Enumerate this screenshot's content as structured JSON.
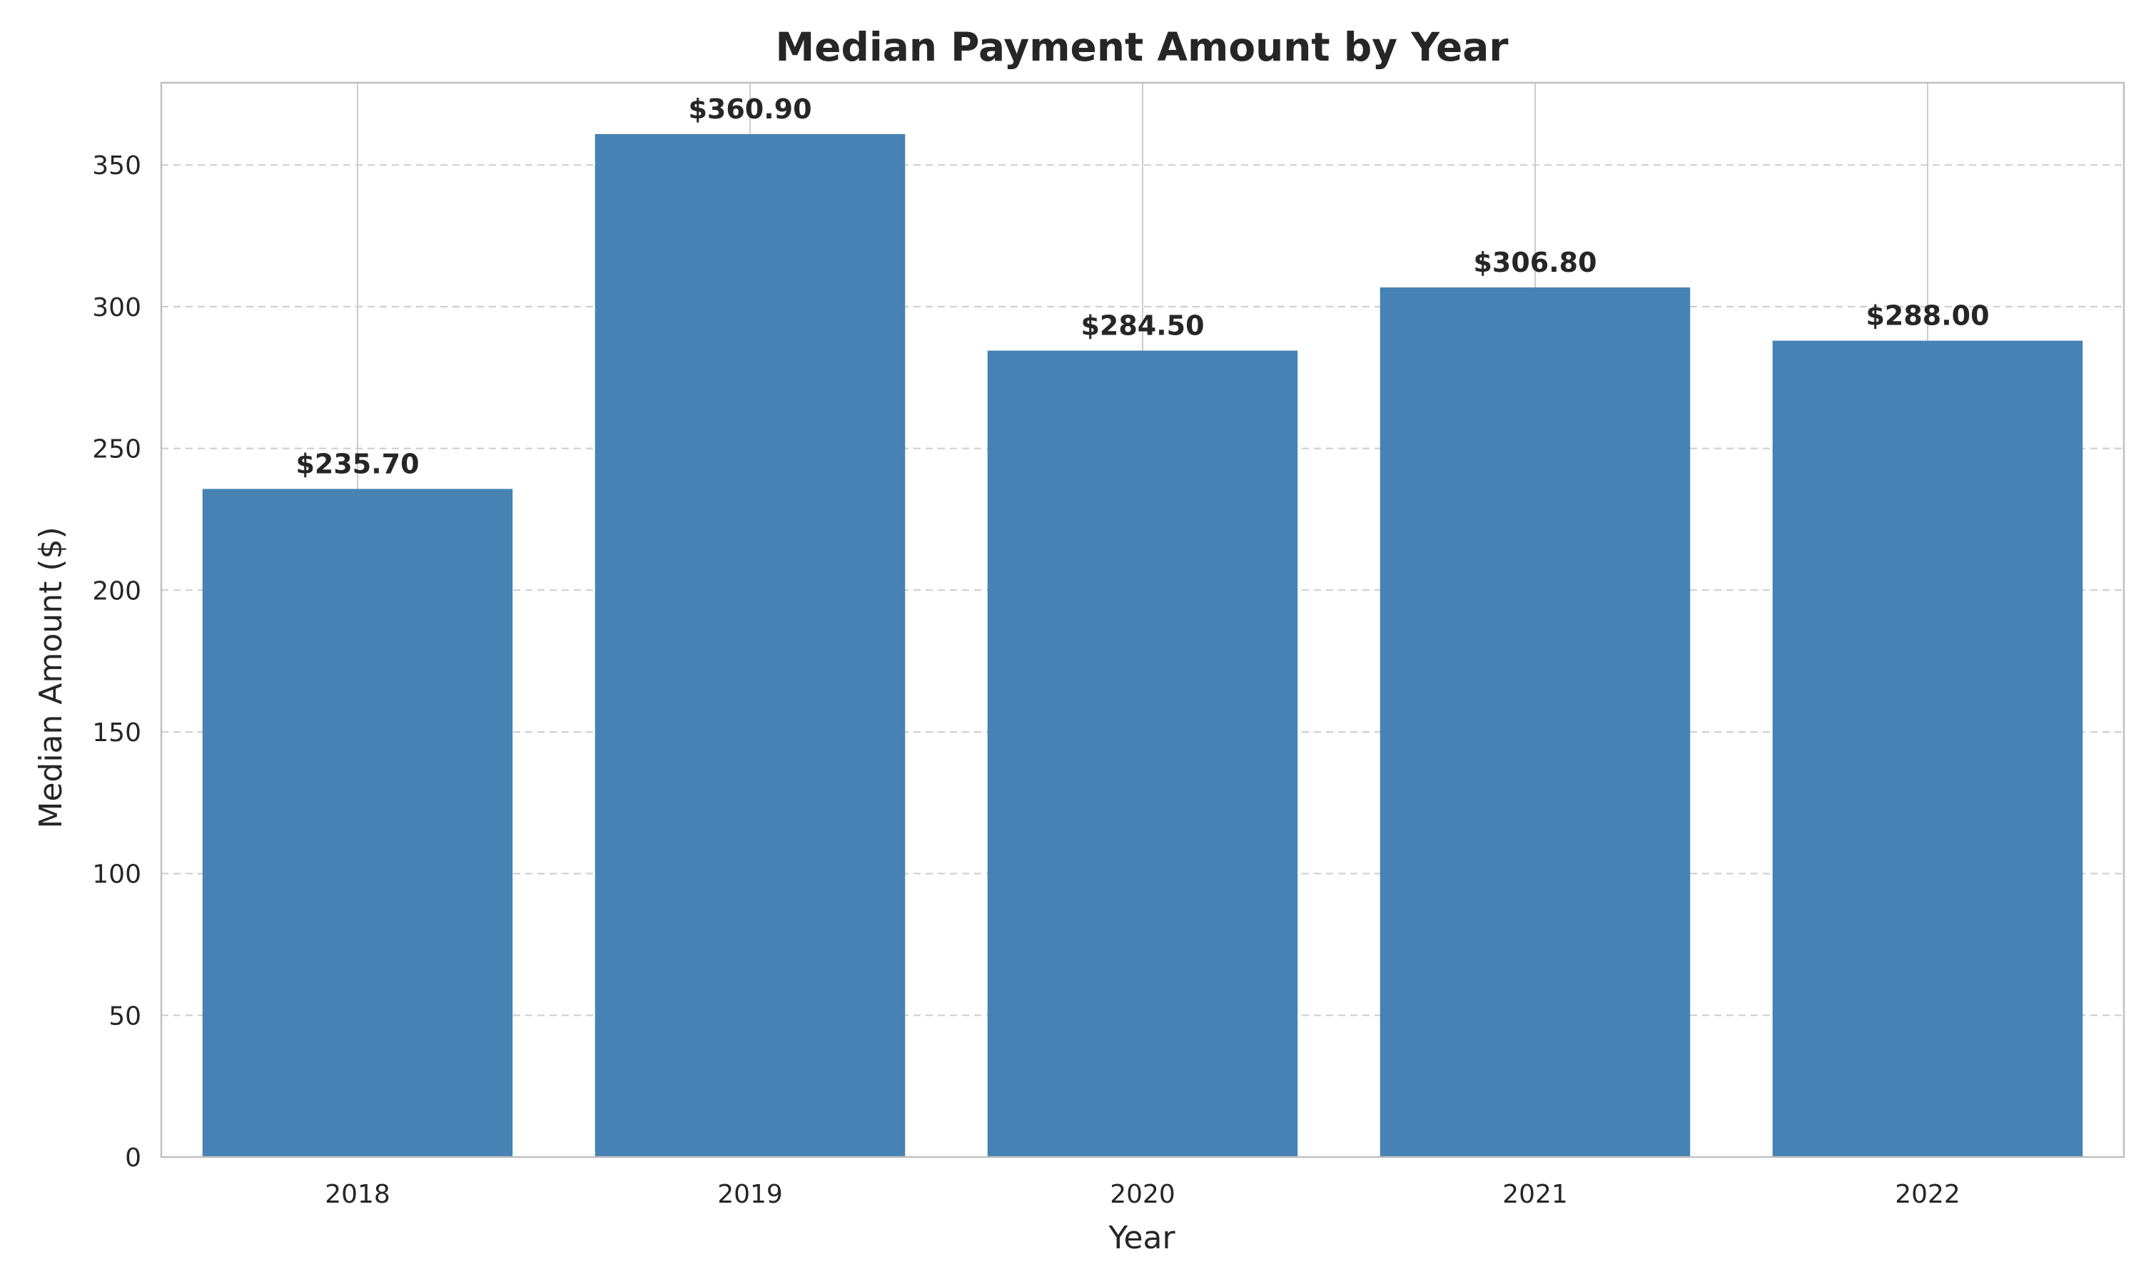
{
  "chart_data": {
    "type": "bar",
    "title": "Median Payment Amount by Year",
    "xlabel": "Year",
    "ylabel": "Median Amount ($)",
    "categories": [
      "2018",
      "2019",
      "2020",
      "2021",
      "2022"
    ],
    "values": [
      235.7,
      360.9,
      284.5,
      306.8,
      288.0
    ],
    "value_labels": [
      "$235.70",
      "$360.90",
      "$284.50",
      "$306.80",
      "$288.00"
    ],
    "ylim": [
      0,
      379
    ],
    "yticks": [
      0,
      50,
      100,
      150,
      200,
      250,
      300,
      350
    ],
    "grid": {
      "x": "solid",
      "y": "dashed"
    },
    "legend": "none",
    "colors": {
      "bar": "#4682b4",
      "grid": "#cccccc",
      "spine": "#c0c0c0",
      "text": "#262626"
    }
  }
}
